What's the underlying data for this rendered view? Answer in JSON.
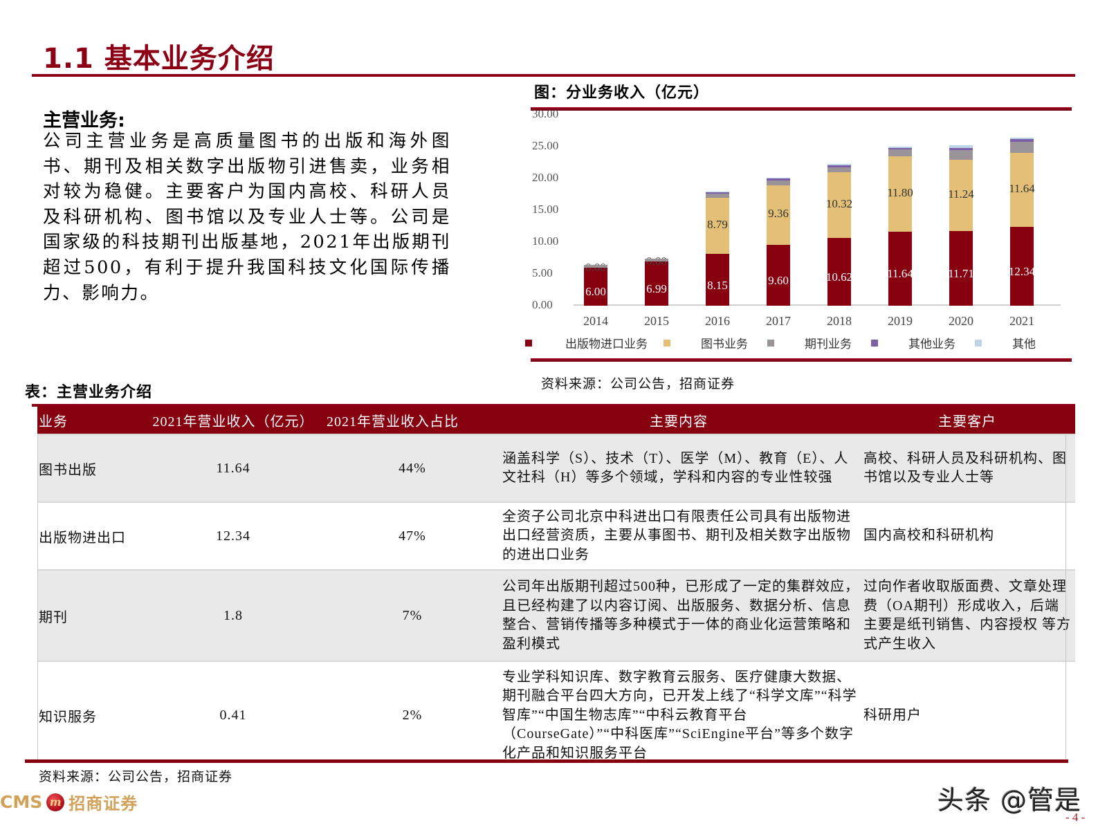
{
  "page": {
    "title": "1.1 基本业务介绍",
    "page_number": "- 4 -",
    "watermark": "头条 @管是",
    "logo": {
      "latin": "CMS",
      "badge": "m",
      "chinese": "招商证券"
    }
  },
  "intro": {
    "heading": "主营业务:",
    "body": "公司主营业务是高质量图书的出版和海外图书、期刊及相关数字出版物引进售卖，业务相对较为稳健。主要客户为国内高校、科研人员及科研机构、图书馆以及专业人士等。公司是国家级的科技期刊出版基地，2021年出版期刊超过500，有利于提升我国科技文化国际传播力、影响力。"
  },
  "chart": {
    "title": "图：分业务收入（亿元）",
    "source": "资料来源：公司公告，招商证券"
  },
  "chart_data": {
    "type": "bar",
    "stacked": true,
    "title": "图：分业务收入（亿元）",
    "xlabel": "",
    "ylabel": "",
    "ylim": [
      0,
      30
    ],
    "yticks": [
      "0.00",
      "5.00",
      "10.00",
      "15.00",
      "20.00",
      "25.00",
      "30.00"
    ],
    "grid": false,
    "legend_position": "bottom",
    "categories": [
      "2014",
      "2015",
      "2016",
      "2017",
      "2018",
      "2019",
      "2020",
      "2021"
    ],
    "series": [
      {
        "name": "出版物进口业务",
        "color": "#86000f",
        "label_color": "#ffffff",
        "values": [
          6.0,
          6.99,
          8.15,
          9.6,
          10.62,
          11.64,
          11.71,
          12.34
        ],
        "labels": [
          "6.00",
          "6.99",
          "8.15",
          "9.60",
          "10.62",
          "11.64",
          "11.71",
          "12.34"
        ]
      },
      {
        "name": "图书业务",
        "color": "#e3bf77",
        "label_color": "#333333",
        "values": [
          0.0,
          0.0,
          8.79,
          9.36,
          10.32,
          11.8,
          11.24,
          11.64
        ],
        "labels": [
          "0.00",
          "0.00",
          "8.79",
          "9.36",
          "10.32",
          "11.80",
          "11.24",
          "11.64"
        ]
      },
      {
        "name": "期刊业务",
        "color": "#9a9498",
        "values": [
          0.4,
          0.45,
          0.7,
          0.75,
          0.85,
          1.1,
          1.55,
          1.8
        ]
      },
      {
        "name": "其他业务",
        "color": "#7b5ea7",
        "values": [
          0.0,
          0.0,
          0.25,
          0.25,
          0.3,
          0.3,
          0.3,
          0.4
        ]
      },
      {
        "name": "其他",
        "color": "#bcd6e8",
        "values": [
          0.0,
          0.0,
          0.1,
          0.1,
          0.15,
          0.2,
          0.4,
          0.2
        ]
      }
    ]
  },
  "table": {
    "title": "表：主营业务介绍",
    "headers": [
      "业务",
      "2021年营业收入（亿元）",
      "2021年营业收入占比",
      "主要内容",
      "主要客户"
    ],
    "rows": [
      {
        "name": "图书出版",
        "revenue": "11.64",
        "share": "44%",
        "content": "涵盖科学（S）、技术（T）、医学（M）、教育（E）、人文社科（H）等多个领域，学科和内容的专业性较强",
        "clients": "高校、科研人员及科研机构、图书馆以及专业人士等"
      },
      {
        "name": "出版物进出口",
        "revenue": "12.34",
        "share": "47%",
        "content": "全资子公司北京中科进出口有限责任公司具有出版物进出口经营资质，主要从事图书、期刊及相关数字出版物的进出口业务",
        "clients": "国内高校和科研机构"
      },
      {
        "name": "期刊",
        "revenue": "1.8",
        "share": "7%",
        "content": "公司年出版期刊超过500种，已形成了一定的集群效应，且已经构建了以内容订阅、出版服务、数据分析、信息整合、营销传播等多种模式于一体的商业化运营策略和盈利模式",
        "clients": "过向作者收取版面费、文章处理费（OA期刊）形成收入，后端主要是纸刊销售、内容授权 等方式产生收入"
      },
      {
        "name": "知识服务",
        "revenue": "0.41",
        "share": "2%",
        "content": "专业学科知识库、数字教育云服务、医疗健康大数据、期刊融合平台四大方向，已开发上线了“科学文库”“科学智库”“中国生物志库”“中科云教育平台（CourseGate）”“中科医库”“SciEngine平台”等多个数字化产品和知识服务平台",
        "clients": "科研用户"
      }
    ],
    "source": "资料来源：公司公告，招商证券"
  }
}
